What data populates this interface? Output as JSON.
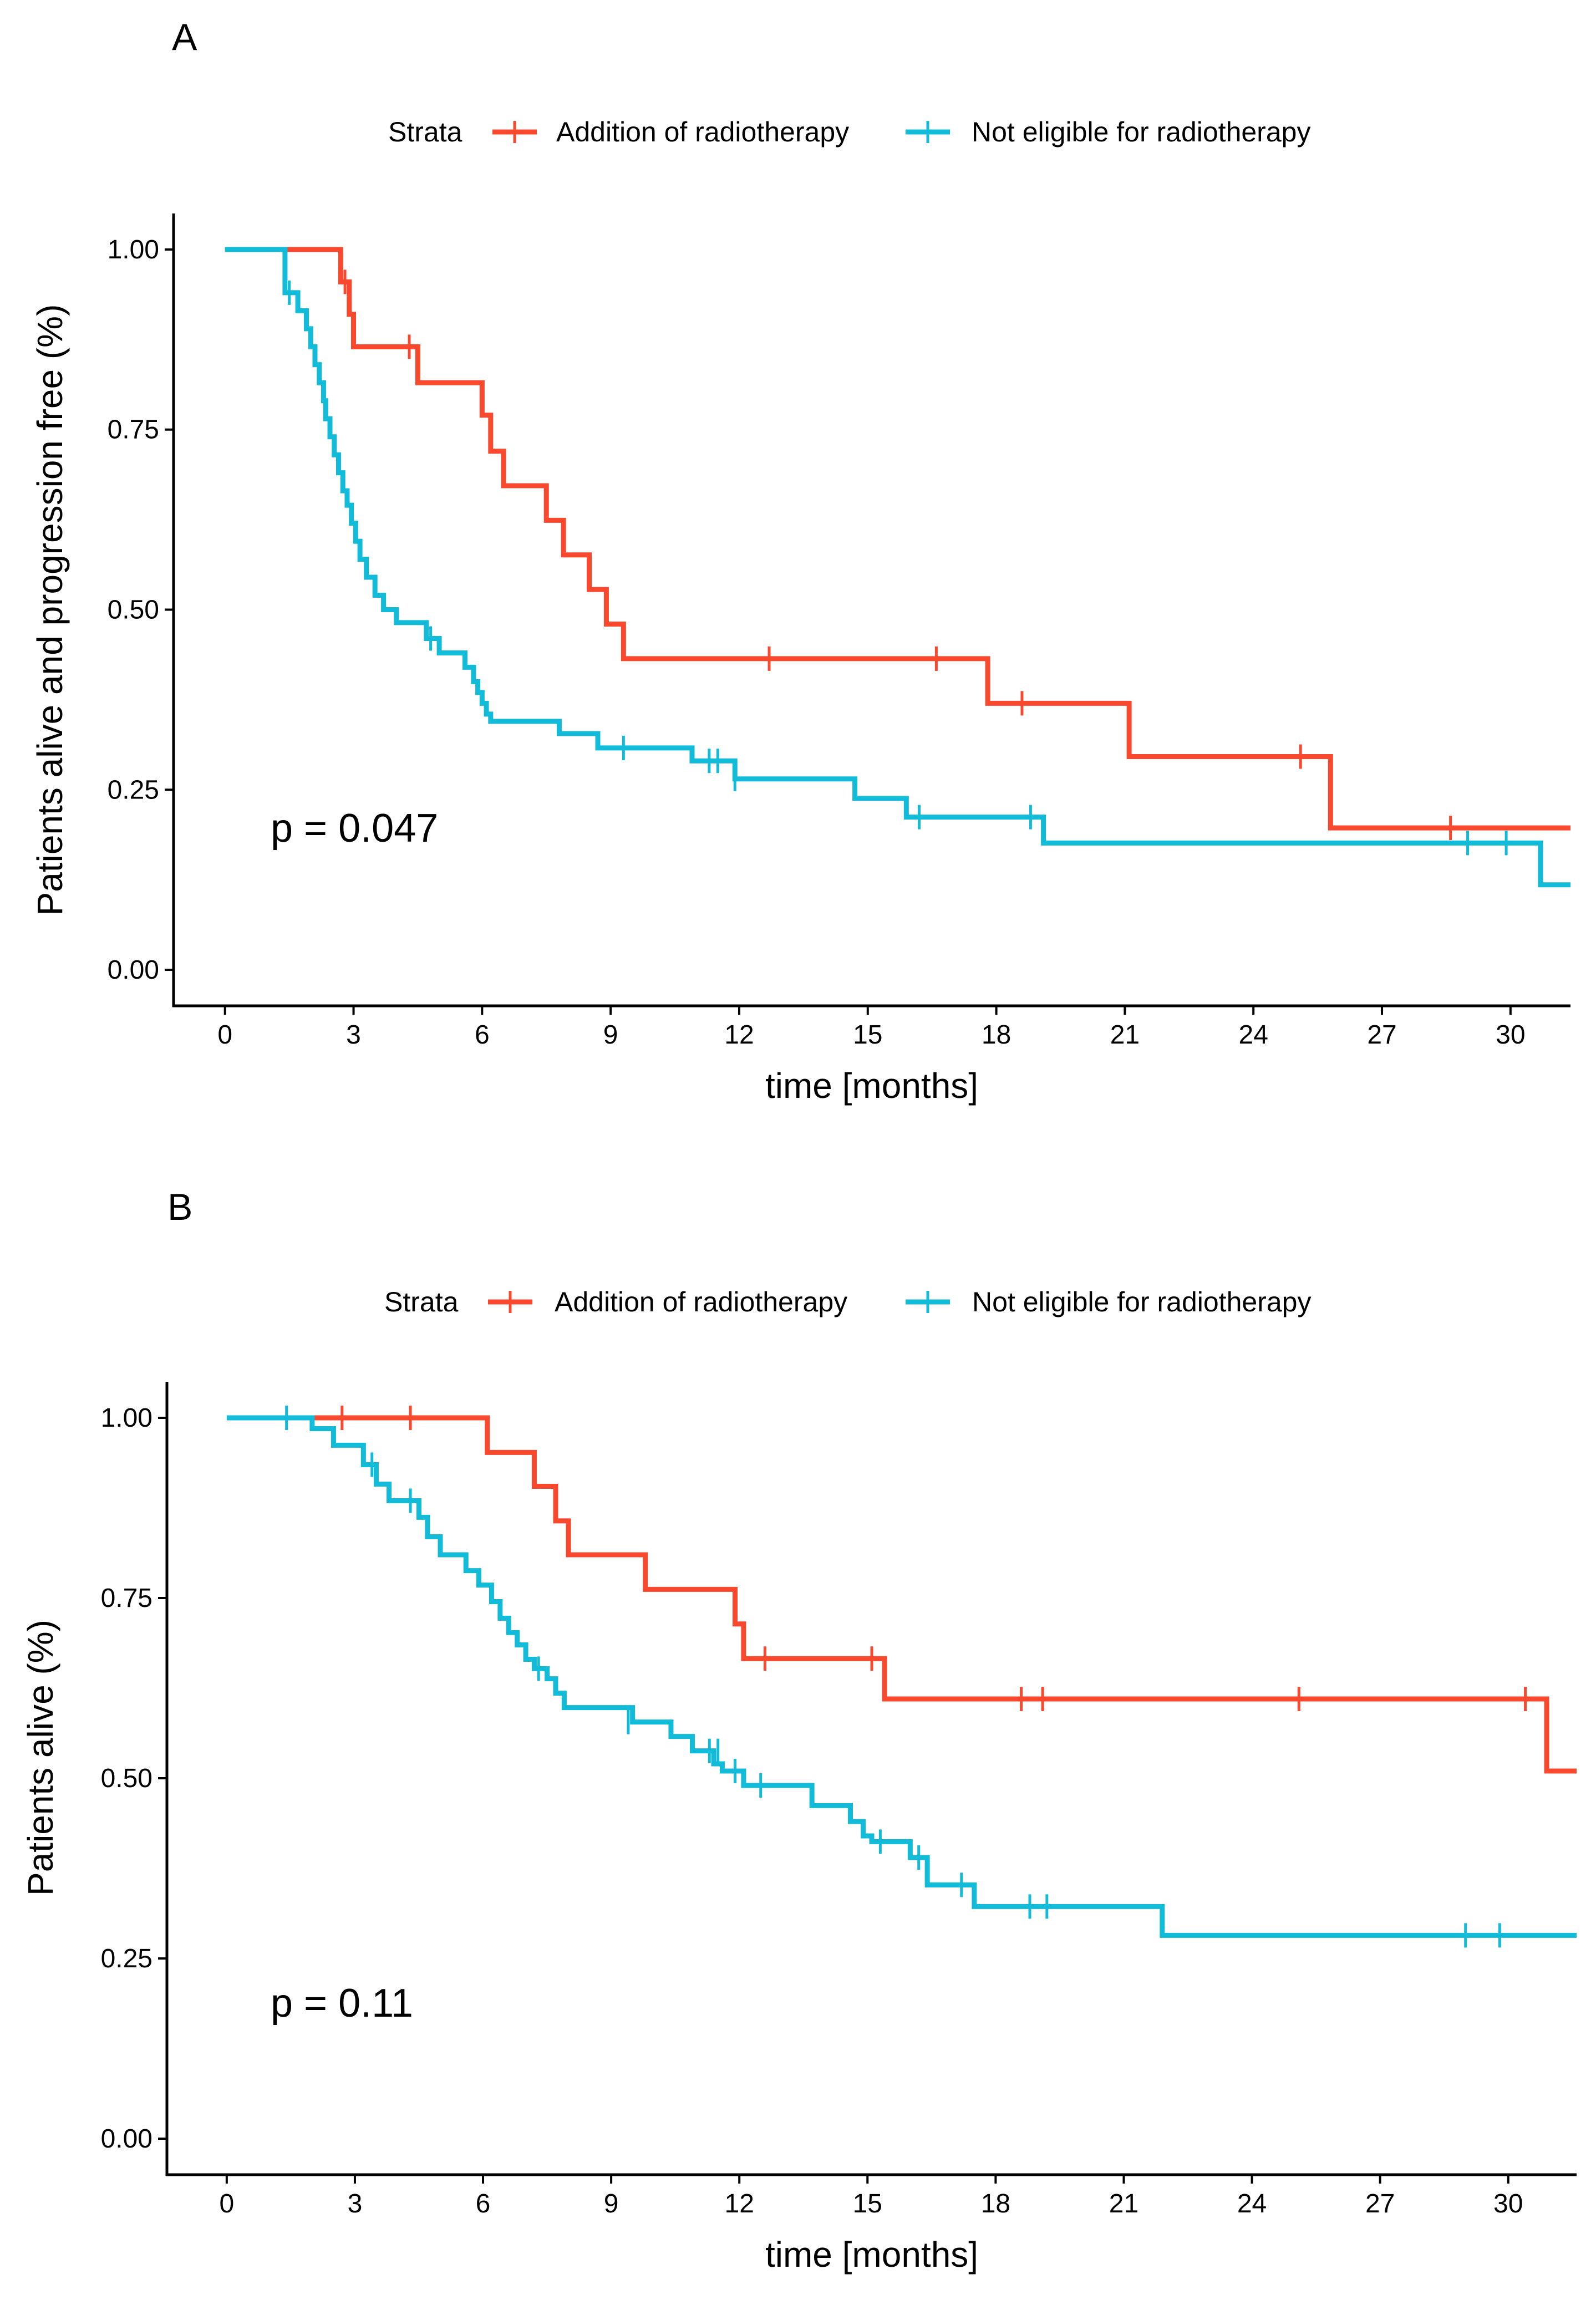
{
  "chart_data": [
    {
      "type": "line",
      "panel": "A",
      "title": "",
      "xlabel": "time [months]",
      "ylabel": "Patients alive and progression free (%)",
      "xlim": [
        -1.2,
        31.4
      ],
      "ylim": [
        -0.05,
        1.05
      ],
      "xticks": [
        0,
        3,
        6,
        9,
        12,
        15,
        18,
        21,
        24,
        27,
        30
      ],
      "yticks": [
        0.0,
        0.25,
        0.5,
        0.75,
        1.0
      ],
      "xtick_labels": [
        "0",
        "3",
        "6",
        "9",
        "12",
        "15",
        "18",
        "21",
        "24",
        "27",
        "30"
      ],
      "ytick_labels": [
        "0.00",
        "0.25",
        "0.50",
        "0.75",
        "1.00"
      ],
      "legend": {
        "title": "Strata",
        "position": "top",
        "entries": [
          "Addition of radiotherapy",
          "Not eligible for radiotherapy"
        ]
      },
      "annotation": "p = 0.047",
      "series": [
        {
          "name": "Addition of radiotherapy",
          "color": "#F8482E",
          "x": [
            0,
            2.5,
            2.7,
            2.9,
            3.0,
            4.5,
            5.8,
            6.0,
            6.2,
            6.5,
            7.5,
            7.9,
            8.5,
            8.9,
            9.3,
            17.8,
            21.1,
            25.8,
            31.4
          ],
          "y": [
            1.0,
            1.0,
            0.955,
            0.91,
            0.865,
            0.815,
            0.815,
            0.77,
            0.72,
            0.672,
            0.624,
            0.576,
            0.528,
            0.48,
            0.432,
            0.37,
            0.296,
            0.197,
            0.197
          ],
          "censor_x": [
            2.8,
            4.3,
            12.7,
            16.6,
            18.6,
            25.1,
            28.6
          ],
          "censor_y": [
            0.955,
            0.865,
            0.432,
            0.432,
            0.37,
            0.296,
            0.197
          ]
        },
        {
          "name": "Not eligible for radiotherapy",
          "color": "#12BBD8",
          "x": [
            0,
            1.4,
            1.7,
            1.9,
            2.0,
            2.1,
            2.2,
            2.3,
            2.35,
            2.45,
            2.55,
            2.65,
            2.75,
            2.85,
            2.95,
            3.05,
            3.15,
            3.3,
            3.5,
            3.7,
            4.0,
            4.7,
            5.0,
            5.6,
            5.8,
            5.9,
            6.0,
            6.1,
            6.2,
            6.8,
            7.8,
            8.7,
            10.9,
            11.9,
            14.7,
            15.9,
            19.1,
            30.7,
            31.4
          ],
          "y": [
            1.0,
            0.94,
            0.915,
            0.89,
            0.865,
            0.84,
            0.815,
            0.79,
            0.765,
            0.74,
            0.715,
            0.69,
            0.665,
            0.645,
            0.62,
            0.595,
            0.57,
            0.545,
            0.52,
            0.5,
            0.482,
            0.46,
            0.44,
            0.42,
            0.4,
            0.385,
            0.37,
            0.355,
            0.345,
            0.345,
            0.328,
            0.308,
            0.29,
            0.265,
            0.238,
            0.212,
            0.176,
            0.118,
            0.118
          ],
          "censor_x": [
            1.5,
            4.8,
            9.3,
            11.3,
            11.5,
            11.9,
            16.2,
            18.8,
            29.0,
            29.9
          ],
          "censor_y": [
            0.94,
            0.46,
            0.308,
            0.29,
            0.29,
            0.265,
            0.212,
            0.212,
            0.176,
            0.176
          ]
        }
      ]
    },
    {
      "type": "line",
      "panel": "B",
      "title": "",
      "xlabel": "time [months]",
      "ylabel": "Patients alive (%)",
      "xlim": [
        -1.4,
        31.6
      ],
      "ylim": [
        -0.05,
        1.05
      ],
      "xticks": [
        0,
        3,
        6,
        9,
        12,
        15,
        18,
        21,
        24,
        27,
        30
      ],
      "yticks": [
        0.0,
        0.25,
        0.5,
        0.75,
        1.0
      ],
      "xtick_labels": [
        "0",
        "3",
        "6",
        "9",
        "12",
        "15",
        "18",
        "21",
        "24",
        "27",
        "30"
      ],
      "ytick_labels": [
        "0.00",
        "0.25",
        "0.50",
        "0.75",
        "1.00"
      ],
      "legend": {
        "title": "Strata",
        "position": "top",
        "entries": [
          "Addition of radiotherapy",
          "Not eligible for radiotherapy"
        ]
      },
      "annotation": "p = 0.11",
      "series": [
        {
          "name": "Addition of radiotherapy",
          "color": "#F8482E",
          "x": [
            1.8,
            6.1,
            7.2,
            7.7,
            8.0,
            9.8,
            11.9,
            12.1,
            15.4,
            30.9,
            31.6
          ],
          "y": [
            1.0,
            0.952,
            0.905,
            0.857,
            0.81,
            0.762,
            0.714,
            0.666,
            0.61,
            0.51,
            0.51
          ],
          "censor_x": [
            2.7,
            4.3,
            12.6,
            15.1,
            18.6,
            19.1,
            25.1,
            30.4
          ],
          "censor_y": [
            1.0,
            1.0,
            0.666,
            0.666,
            0.61,
            0.61,
            0.61,
            0.61
          ]
        },
        {
          "name": "Not eligible for radiotherapy",
          "color": "#12BBD8",
          "x": [
            0,
            1.5,
            2.0,
            2.5,
            3.2,
            3.5,
            3.8,
            4.5,
            4.7,
            5.0,
            5.6,
            5.9,
            6.2,
            6.4,
            6.6,
            6.8,
            7.0,
            7.2,
            7.5,
            7.7,
            7.9,
            8.0,
            9.5,
            10.4,
            10.9,
            11.4,
            11.6,
            12.1,
            13.7,
            14.6,
            14.9,
            15.1,
            15.4,
            16.0,
            16.4,
            17.5,
            21.9,
            31.6
          ],
          "y": [
            1.0,
            1.0,
            0.985,
            0.962,
            0.935,
            0.908,
            0.885,
            0.862,
            0.835,
            0.81,
            0.788,
            0.768,
            0.745,
            0.722,
            0.702,
            0.685,
            0.665,
            0.652,
            0.638,
            0.618,
            0.598,
            0.598,
            0.578,
            0.558,
            0.538,
            0.52,
            0.51,
            0.49,
            0.462,
            0.44,
            0.42,
            0.412,
            0.412,
            0.39,
            0.352,
            0.322,
            0.282,
            0.282
          ],
          "censor_x": [
            1.4,
            3.4,
            4.3,
            7.3,
            9.4,
            11.3,
            11.5,
            11.9,
            12.5,
            15.3,
            16.2,
            17.2,
            18.8,
            19.2,
            29.0,
            29.8
          ],
          "censor_y": [
            1.0,
            0.935,
            0.885,
            0.652,
            0.578,
            0.538,
            0.538,
            0.51,
            0.49,
            0.412,
            0.39,
            0.352,
            0.322,
            0.322,
            0.282,
            0.282
          ]
        }
      ]
    }
  ]
}
